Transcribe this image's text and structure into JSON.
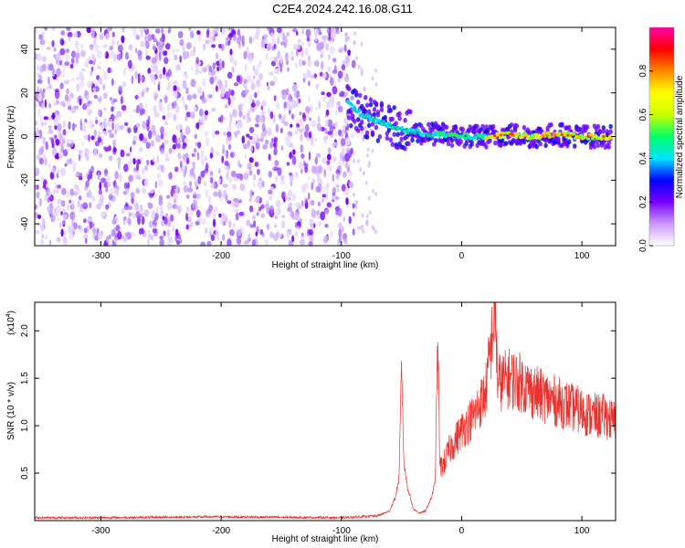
{
  "title": "C2E4.2024.242.16.08.G11",
  "chart_data": [
    {
      "type": "heatmap",
      "xlabel": "Height of straight line (km)",
      "ylabel": "Frequency (Hz)",
      "xlim": [
        -355,
        128
      ],
      "ylim": [
        -50,
        50
      ],
      "xticks": [
        -300,
        -200,
        -100,
        0,
        100
      ],
      "yticks": [
        -40,
        -20,
        0,
        20,
        40
      ],
      "xtick_labels": [
        "-300",
        "-200",
        "-100",
        "0",
        "100"
      ],
      "ytick_labels": [
        "-40",
        "-20",
        "0",
        "20",
        "40"
      ],
      "noise_region_x": [
        -355,
        -82
      ],
      "signal_trace": {
        "x": [
          -95,
          -80,
          -60,
          -40,
          -20,
          0,
          20,
          40,
          60,
          80,
          100,
          125
        ],
        "y": [
          15,
          9,
          5,
          2,
          1,
          0,
          0,
          1,
          0,
          1,
          0,
          0
        ]
      },
      "colorbar": {
        "label": "Normalized spectral amplitude",
        "range": [
          0,
          1
        ],
        "ticks": [
          0.0,
          0.2,
          0.4,
          0.6,
          0.8
        ],
        "tick_labels": [
          "0.0",
          "0.2",
          "0.4",
          "0.6",
          "0.8"
        ],
        "colors": [
          "#ffffff",
          "#cc99ff",
          "#7a00ff",
          "#0000ff",
          "#00e5ff",
          "#00ff66",
          "#ccff00",
          "#ffff00",
          "#ff8800",
          "#ff0000",
          "#ff00aa"
        ]
      }
    },
    {
      "type": "line",
      "xlabel": "Height of straight line (km)",
      "ylabel": "SNR (10 * v/v)",
      "multiplier": "(x10",
      "multiplier_exp": "4",
      "multiplier_close": ")",
      "xlim": [
        -355,
        128
      ],
      "ylim": [
        0,
        2.3
      ],
      "xticks": [
        -300,
        -200,
        -100,
        0,
        100
      ],
      "yticks": [
        0.5,
        1.0,
        1.5,
        2.0
      ],
      "xtick_labels": [
        "-300",
        "-200",
        "-100",
        "0",
        "100"
      ],
      "ytick_labels": [
        "0.5",
        "1.0",
        "1.5",
        "2.0"
      ],
      "color": "#e8332e",
      "series": [
        {
          "x": [
            -355,
            -300,
            -200,
            -100,
            -70,
            -60,
            -55,
            -52,
            -50,
            -48,
            -45,
            -40,
            -35,
            -30,
            -25,
            -22,
            -20,
            -18,
            -15,
            -10,
            -5,
            0,
            10,
            20,
            28,
            30,
            40,
            50,
            60,
            70,
            80,
            90,
            100,
            110,
            120,
            125
          ],
          "y": [
            0.03,
            0.03,
            0.04,
            0.03,
            0.05,
            0.1,
            0.25,
            0.45,
            1.7,
            0.6,
            0.35,
            0.12,
            0.08,
            0.1,
            0.25,
            0.4,
            1.9,
            0.55,
            0.6,
            0.75,
            0.85,
            0.95,
            1.1,
            1.35,
            2.25,
            1.45,
            1.5,
            1.45,
            1.35,
            1.3,
            1.25,
            1.2,
            1.15,
            1.1,
            1.1,
            1.05
          ]
        }
      ]
    }
  ]
}
